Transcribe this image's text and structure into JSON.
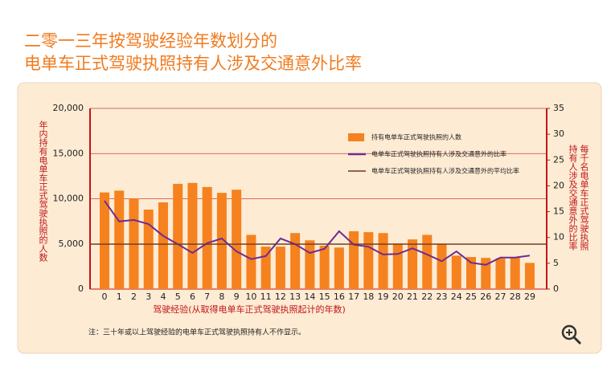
{
  "chart_data": {
    "type": "bar",
    "title": [
      "二零一三年按驾驶经验年数划分的",
      "电单车正式驾驶执照持有人涉及交通意外比率"
    ],
    "ylabel": "年内持有电单车正式驾驶执照的人数",
    "y2label": [
      "每千名电单车正式驾驶执照",
      "持有人涉及交通意外的比率"
    ],
    "xlabel": "驾驶经验(从取得电单车正式驾驶执照起计的年数)",
    "note": "注：三十年或以上驾驶经验的电单车正式驾驶执照持有人不作显示。",
    "categories": [
      "0",
      "1",
      "2",
      "3",
      "4",
      "5",
      "6",
      "7",
      "8",
      "9",
      "10",
      "11",
      "12",
      "13",
      "14",
      "15",
      "16",
      "17",
      "18",
      "19",
      "20",
      "21",
      "22",
      "23",
      "24",
      "25",
      "26",
      "27",
      "28",
      "29"
    ],
    "series": [
      {
        "name": "持有电单车正式驾驶执照的人数",
        "color": "#f5821f",
        "type": "bar",
        "values": [
          10700,
          10900,
          10000,
          8800,
          9600,
          11650,
          11750,
          11300,
          10650,
          11000,
          6000,
          4700,
          4700,
          6200,
          5400,
          4800,
          4600,
          6400,
          6300,
          6200,
          5050,
          5500,
          6000,
          5000,
          3700,
          3550,
          3450,
          3400,
          3500,
          2900
        ]
      },
      {
        "name": "电单车正式驾驶执照持有人涉及交通意外的比率",
        "color": "#6f2c91",
        "type": "line",
        "axis": "y2",
        "values": [
          17.1,
          13.1,
          13.4,
          12.6,
          10.3,
          8.7,
          7.0,
          8.9,
          9.8,
          7.3,
          5.8,
          6.4,
          9.8,
          8.7,
          7.0,
          7.8,
          11.2,
          8.6,
          8.2,
          6.7,
          6.8,
          7.9,
          6.7,
          5.4,
          7.3,
          5.1,
          4.7,
          6.1,
          6.1,
          6.5
        ]
      },
      {
        "name": "电单车正式驾驶执照持有人涉及交通意外的平均比率",
        "color": "#6b3a1e",
        "type": "average",
        "axis": "y2",
        "value": 8.7
      }
    ],
    "ylim": [
      0,
      20000
    ],
    "yticks": [
      0,
      {
        "value": 5000,
        "label": "5,000"
      },
      {
        "value": 10000,
        "label": "10,000"
      },
      {
        "value": 15000,
        "label": "15,000"
      },
      {
        "value": 20000,
        "label": "20,000"
      }
    ],
    "y2lim": [
      0,
      35
    ],
    "y2ticks": [
      0,
      5,
      10,
      15,
      20,
      25,
      30,
      35
    ],
    "grid": true
  }
}
